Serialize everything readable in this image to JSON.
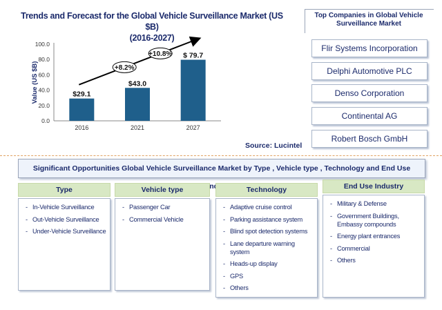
{
  "chart_data": {
    "type": "bar",
    "title": "Trends and Forecast for the Global Vehicle Surveillance Market (US $B) (2016-2027)",
    "title_line1": "Trends and Forecast for the Global Vehicle Surveillance Market (US $B)",
    "title_line2": "(2016-2027)",
    "categories": [
      "2016",
      "2021",
      "2027"
    ],
    "values": [
      29.1,
      43.0,
      79.7
    ],
    "value_labels": [
      "$29.1",
      "$43.0",
      "$ 79.7"
    ],
    "ylabel": "Value (US $B)",
    "xlabel": "",
    "ylim": [
      0,
      100
    ],
    "yticks": [
      "0.0",
      "20.0",
      "40.0",
      "60.0",
      "80.0",
      "100.0"
    ],
    "grid": false,
    "bar_color": "#1f5f8b",
    "annotations": [
      "+8.2%",
      "+10.8%"
    ]
  },
  "source": "Source:  Lucintel",
  "companies": {
    "title": "Top Companies in Global Vehicle Surveillance Market",
    "items": [
      "Flir Systems Incorporation",
      "Delphi Automotive PLC",
      "Denso Corporation",
      "Continental AG",
      "Robert Bosch GmbH"
    ]
  },
  "opportunities": {
    "header": "Significant Opportunities Global Vehicle Surveillance Market by Type , Vehicle type , Technology and End Use Industry",
    "columns": [
      {
        "title": "Type",
        "items": [
          "In-Vehicle Surveillance",
          "Out-Vehicle Surveillance",
          "Under-Vehicle Surveillance"
        ]
      },
      {
        "title": "Vehicle  type",
        "items": [
          "Passenger Car",
          "Commercial Vehicle"
        ]
      },
      {
        "title": "Technology",
        "items": [
          "Adaptive cruise control",
          "Parking assistance system",
          "Blind spot detection systems",
          "Lane departure warning system",
          "Heads-up display",
          "GPS",
          "Others"
        ]
      },
      {
        "title": "End Use Industry",
        "items": [
          "Military & Defense",
          "Government Buildings, Embassy compounds",
          "Energy plant entrances",
          "Commercial",
          "Others"
        ]
      }
    ]
  },
  "colors": {
    "navy_text": "#1b2a6b",
    "bar": "#1f5f8b",
    "column_header": "#d8e8c4",
    "divider": "#e0a060"
  }
}
